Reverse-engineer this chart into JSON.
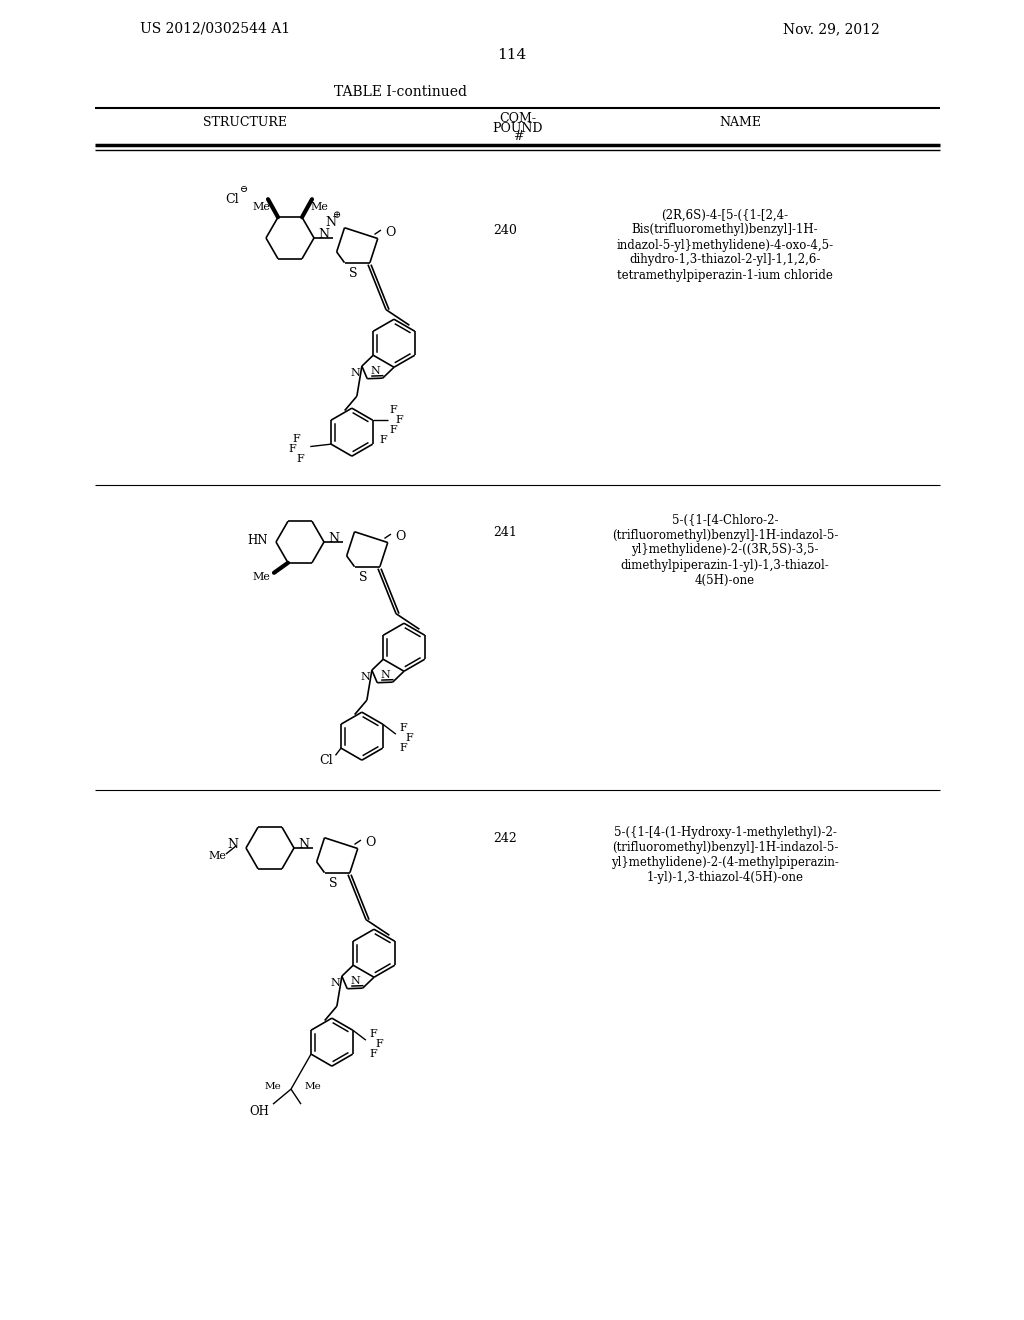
{
  "bg_color": "#ffffff",
  "patent_left": "US 2012/0302544 A1",
  "patent_right": "Nov. 29, 2012",
  "page_number": "114",
  "table_title": "TABLE I-continued",
  "compounds": [
    {
      "number": "240",
      "name": "(2R,6S)-4-[5-({1-[2,4-\nBis(trifluoromethyl)benzyl]-1H-\nindazol-5-yl}methylidene)-4-oxo-4,5-\ndihydro-1,3-thiazol-2-yl]-1,1,2,6-\ntetramethylpiperazin-1-ium chloride"
    },
    {
      "number": "241",
      "name": "5-({1-[4-Chloro-2-\n(trifluoromethyl)benzyl]-1H-indazol-5-\nyl}methylidene)-2-((3R,5S)-3,5-\ndimethylpiperazin-1-yl)-1,3-thiazol-\n4(5H)-one"
    },
    {
      "number": "242",
      "name": "5-({1-[4-(1-Hydroxy-1-methylethyl)-2-\n(trifluoromethyl)benzyl]-1H-indazol-5-\nyl}methylidene)-2-(4-methylpiperazin-\n1-yl)-1,3-thiazol-4(5H)-one"
    }
  ]
}
